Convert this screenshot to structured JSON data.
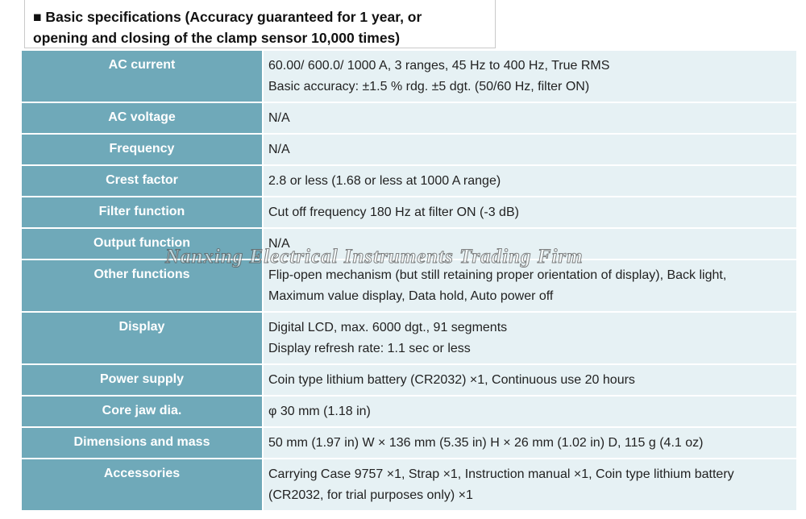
{
  "header": {
    "title": [
      "■ Basic specifications (Accuracy guaranteed for 1 year, or",
      "opening and closing of the clamp sensor 10,000 times)"
    ]
  },
  "table": {
    "rows": [
      [
        "AC current",
        [
          "60.00/ 600.0/ 1000 A, 3 ranges, 45 Hz to 400 Hz, True RMS",
          "Basic accuracy: ±1.5 % rdg. ±5 dgt. (50/60 Hz, filter ON)"
        ]
      ],
      [
        "AC voltage",
        [
          "N/A"
        ]
      ],
      [
        "Frequency",
        [
          "N/A"
        ]
      ],
      [
        "Crest factor",
        [
          "2.8 or less (1.68 or less at 1000 A range)"
        ]
      ],
      [
        "Filter function",
        [
          "Cut off frequency 180 Hz at filter ON (-3 dB)"
        ]
      ],
      [
        "Output function",
        [
          "N/A"
        ]
      ],
      [
        "Other functions",
        [
          "Flip-open mechanism (but still retaining proper orientation of display), Back light,",
          "Maximum value display, Data hold, Auto power off"
        ]
      ],
      [
        "Display",
        [
          "Digital LCD, max. 6000 dgt., 91 segments",
          "Display refresh rate: 1.1 sec or less"
        ]
      ],
      [
        "Power supply",
        [
          "Coin type lithium battery (CR2032) ×1, Continuous use 20 hours"
        ]
      ],
      [
        "Core jaw dia.",
        [
          "φ 30 mm (1.18 in)"
        ]
      ],
      [
        "Dimensions and mass",
        [
          "50 mm (1.97 in) W × 136 mm (5.35 in) H × 26 mm (1.02 in) D, 115 g (4.1 oz)"
        ]
      ],
      [
        "Accessories",
        [
          "Carrying Case 9757 ×1, Strap ×1, Instruction manual ×1, Coin type lithium battery",
          "(CR2032, for trial purposes only) ×1"
        ]
      ]
    ]
  },
  "watermark": "Nanxing Electrical Instruments Trading Firm"
}
